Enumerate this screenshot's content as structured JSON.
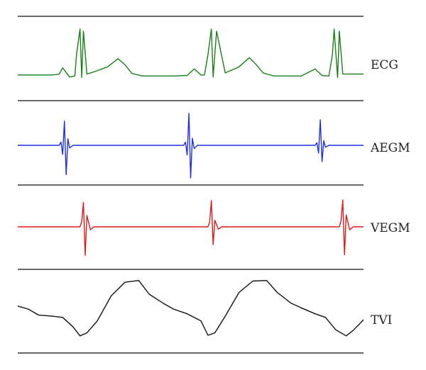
{
  "chart_data": {
    "type": "line",
    "title": "",
    "grid": false,
    "legend": "none",
    "x": [
      0,
      0.04,
      0.08,
      0.12,
      0.14,
      0.16,
      0.17,
      0.18,
      0.19,
      0.2,
      0.21,
      0.24,
      0.27,
      0.3,
      0.32,
      0.34,
      0.38,
      0.42,
      0.46,
      0.5,
      0.54,
      0.52,
      0.56,
      0.58,
      0.55,
      0.55
    ],
    "series": [
      {
        "name": "ECG",
        "color": "#1a7f1a",
        "x": [
          0,
          0.1,
          0.12,
          0.13,
          0.15,
          0.165,
          0.17,
          0.18,
          0.185,
          0.19,
          0.2,
          0.22,
          0.26,
          0.29,
          0.31,
          0.33,
          0.36,
          0.45,
          0.49,
          0.51,
          0.53,
          0.54,
          0.55,
          0.56,
          0.565,
          0.575,
          0.6,
          0.64,
          0.67,
          0.69,
          0.71,
          0.74,
          0.82,
          0.86,
          0.88,
          0.9,
          0.91,
          0.915,
          0.925,
          0.93,
          0.94,
          0.97,
          1.0
        ],
        "values": [
          0.1,
          0.1,
          0.12,
          0.24,
          0.06,
          0.08,
          0.5,
          1.0,
          0.05,
          0.96,
          0.12,
          0.16,
          0.26,
          0.42,
          0.3,
          0.13,
          0.08,
          0.08,
          0.09,
          0.22,
          0.1,
          0.1,
          0.5,
          1.0,
          0.06,
          0.96,
          0.14,
          0.26,
          0.44,
          0.3,
          0.14,
          0.08,
          0.08,
          0.22,
          0.09,
          0.08,
          0.5,
          1.0,
          0.05,
          0.96,
          0.12,
          0.12,
          0.12
        ]
      },
      {
        "name": "AEGM",
        "color": "#1f2fe0",
        "x": [
          0,
          0.12,
          0.125,
          0.13,
          0.135,
          0.14,
          0.145,
          0.15,
          0.16,
          0.48,
          0.485,
          0.49,
          0.495,
          0.5,
          0.505,
          0.51,
          0.52,
          0.86,
          0.865,
          0.87,
          0.875,
          0.88,
          0.885,
          0.89,
          0.9,
          1.0
        ],
        "values": [
          0,
          0,
          0.1,
          -0.28,
          0.74,
          -0.9,
          0.2,
          -0.08,
          0,
          0,
          0.1,
          -0.3,
          0.98,
          -1.0,
          0.22,
          -0.1,
          0,
          0,
          0.08,
          -0.24,
          0.78,
          -0.5,
          0.14,
          -0.06,
          0,
          0
        ]
      },
      {
        "name": "VEGM",
        "color": "#e01818",
        "x": [
          0,
          0.18,
          0.185,
          0.19,
          0.195,
          0.2,
          0.21,
          0.22,
          0.55,
          0.555,
          0.56,
          0.565,
          0.57,
          0.58,
          0.59,
          0.93,
          0.935,
          0.94,
          0.945,
          0.95,
          0.96,
          0.97,
          1.0
        ],
        "values": [
          0,
          0,
          0.18,
          0.82,
          -0.96,
          0.38,
          -0.1,
          0,
          0,
          0.16,
          0.88,
          -0.6,
          0.22,
          -0.08,
          0,
          0,
          0.2,
          0.9,
          -0.94,
          0.4,
          -0.1,
          0,
          0
        ]
      },
      {
        "name": "TVI",
        "color": "#111111",
        "x": [
          0,
          0.03,
          0.06,
          0.1,
          0.13,
          0.16,
          0.18,
          0.2,
          0.23,
          0.27,
          0.31,
          0.35,
          0.38,
          0.42,
          0.45,
          0.49,
          0.53,
          0.55,
          0.57,
          0.6,
          0.64,
          0.68,
          0.72,
          0.75,
          0.79,
          0.82,
          0.86,
          0.89,
          0.92,
          0.95,
          0.97,
          1.0
        ],
        "values": [
          0.55,
          0.5,
          0.4,
          0.38,
          0.36,
          0.2,
          0.05,
          0.1,
          0.3,
          0.72,
          0.95,
          0.98,
          0.75,
          0.6,
          0.5,
          0.42,
          0.3,
          0.06,
          0.1,
          0.38,
          0.78,
          0.97,
          0.98,
          0.78,
          0.6,
          0.52,
          0.42,
          0.36,
          0.15,
          0.05,
          0.14,
          0.32
        ]
      }
    ]
  }
}
